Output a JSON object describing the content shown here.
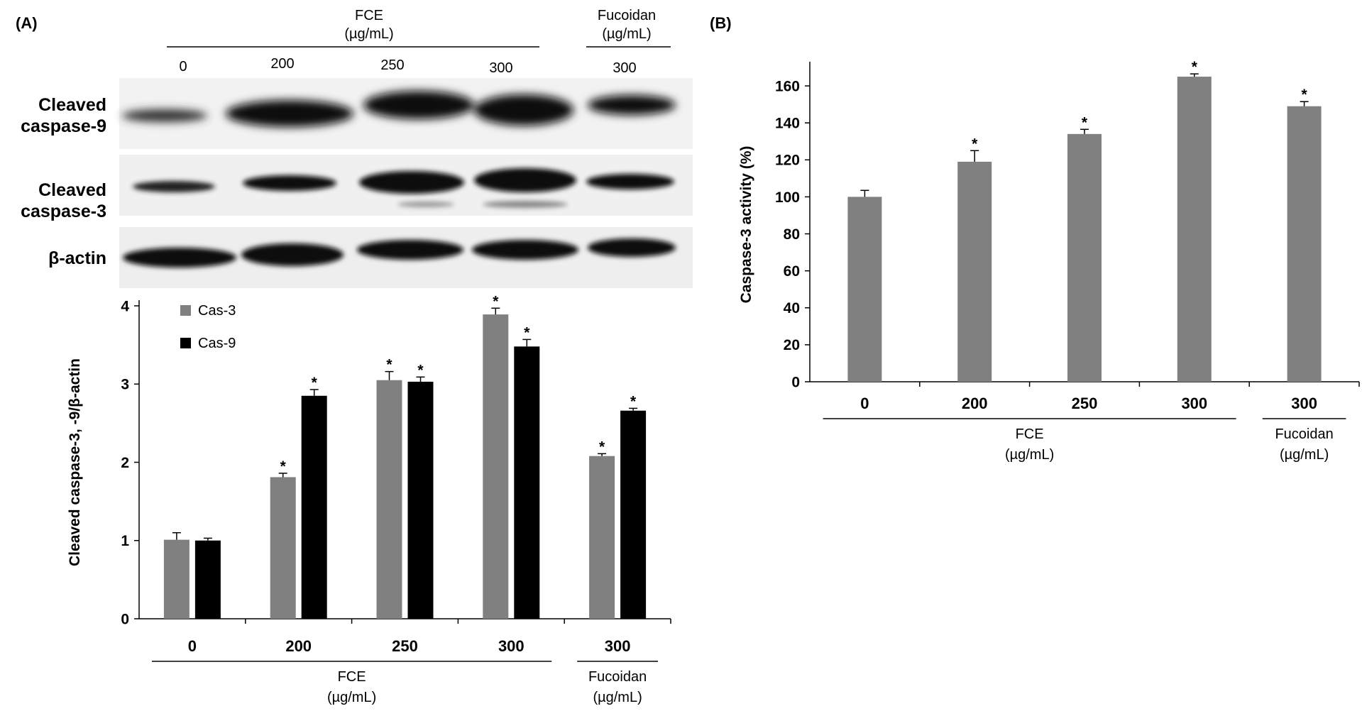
{
  "panel_a": {
    "label": "(A)",
    "blot": {
      "fce_header": [
        "FCE",
        "(µg/mL)"
      ],
      "fucoidan_header": [
        "Fucoidan",
        "(µg/mL)"
      ],
      "lane_labels": [
        "0",
        "200",
        "250",
        "300",
        "300"
      ],
      "rows": [
        {
          "label": [
            "Cleaved",
            "caspase-9"
          ]
        },
        {
          "label": [
            "Cleaved",
            "caspase-3"
          ]
        },
        {
          "label": [
            "β-actin"
          ]
        }
      ]
    }
  },
  "panel_b": {
    "label": "(B)"
  },
  "chart_data": [
    {
      "type": "bar",
      "panel": "A",
      "categories": [
        "0",
        "200",
        "250",
        "300",
        "300"
      ],
      "series": [
        {
          "name": "Cas-3",
          "color": "#808080",
          "values": [
            1.01,
            1.81,
            3.05,
            3.89,
            2.08
          ],
          "errors": [
            0.09,
            0.05,
            0.11,
            0.08,
            0.03
          ],
          "significant": [
            false,
            true,
            true,
            true,
            true
          ]
        },
        {
          "name": "Cas-9",
          "color": "#000000",
          "values": [
            1.0,
            2.85,
            3.03,
            3.48,
            2.66
          ],
          "errors": [
            0.03,
            0.08,
            0.06,
            0.09,
            0.03
          ],
          "significant": [
            false,
            true,
            true,
            true,
            true
          ]
        }
      ],
      "ylabel": "Cleaved caspase-3, -9/β-actin",
      "ylim": [
        0,
        4
      ],
      "yticks": [
        "0",
        "1",
        "2",
        "3",
        "4"
      ],
      "group_labels": [
        {
          "lines": [
            "FCE",
            "(µg/mL)"
          ],
          "categories": [
            0,
            1,
            2,
            3
          ]
        },
        {
          "lines": [
            "Fucoidan",
            "(µg/mL)"
          ],
          "categories": [
            4
          ]
        }
      ],
      "significance_marker": "*",
      "legend_position": "top-left",
      "grid": false
    },
    {
      "type": "bar",
      "panel": "B",
      "categories": [
        "0",
        "200",
        "250",
        "300",
        "300"
      ],
      "series": [
        {
          "color": "#808080",
          "values": [
            100,
            119,
            134,
            165,
            149
          ],
          "errors": [
            3.5,
            6,
            2.5,
            1.5,
            2.5
          ],
          "significant": [
            false,
            true,
            true,
            true,
            true
          ]
        }
      ],
      "ylabel": "Caspase-3 activity (%)",
      "ylim": [
        0,
        170
      ],
      "yticks": [
        "0",
        "20",
        "40",
        "60",
        "80",
        "100",
        "120",
        "140",
        "160"
      ],
      "group_labels": [
        {
          "lines": [
            "FCE",
            "(µg/mL)"
          ],
          "categories": [
            0,
            1,
            2,
            3
          ]
        },
        {
          "lines": [
            "Fucoidan",
            "(µg/mL)"
          ],
          "categories": [
            4
          ]
        }
      ],
      "significance_marker": "*",
      "grid": false
    }
  ]
}
